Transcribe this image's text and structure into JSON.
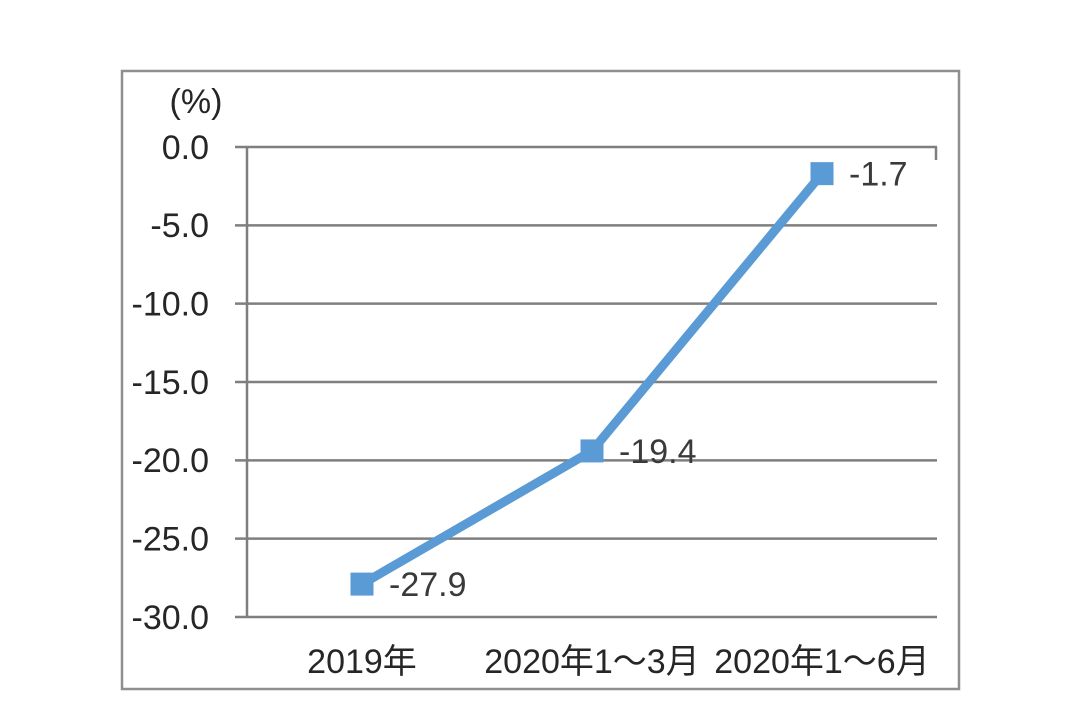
{
  "chart_data": {
    "type": "line",
    "title": "",
    "unit_label": "(%)",
    "categories": [
      "2019年",
      "2020年1～3月",
      "2020年1～6月"
    ],
    "series": [
      {
        "name": "",
        "values": [
          -27.9,
          -19.4,
          -1.7
        ]
      }
    ],
    "data_labels": [
      "-27.9",
      "-19.4",
      "-1.7"
    ],
    "y_ticks": [
      "0.0",
      "-5.0",
      "-10.0",
      "-15.0",
      "-20.0",
      "-25.0",
      "-30.0"
    ],
    "y_tick_values": [
      0,
      -5,
      -10,
      -15,
      -20,
      -25,
      -30
    ],
    "ylim": [
      -30,
      0
    ],
    "grid": true,
    "legend": "none",
    "marker": "square",
    "colors": {
      "line": "#5b9bd5",
      "marker": "#5b9bd5",
      "gridline": "#7f7f7f",
      "axis": "#7f7f7f",
      "frame": "#8f8f8f",
      "tick_text": "#262626",
      "data_label_text": "#3a3a3a"
    }
  }
}
